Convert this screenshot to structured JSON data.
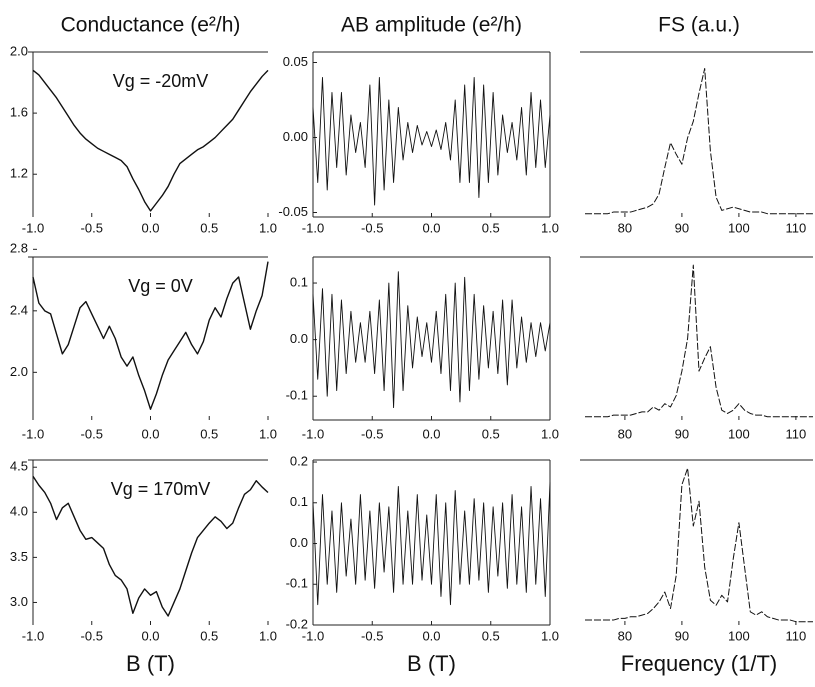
{
  "chart_data": [
    {
      "type": "line",
      "title": "Conductance (e²/h)",
      "annotation": "Vg = -20mV",
      "x": [
        -1,
        -0.95,
        -0.9,
        -0.85,
        -0.8,
        -0.75,
        -0.7,
        -0.65,
        -0.6,
        -0.55,
        -0.5,
        -0.45,
        -0.4,
        -0.35,
        -0.3,
        -0.25,
        -0.2,
        -0.15,
        -0.1,
        -0.05,
        0,
        0.05,
        0.1,
        0.15,
        0.2,
        0.25,
        0.3,
        0.35,
        0.4,
        0.45,
        0.5,
        0.55,
        0.6,
        0.65,
        0.7,
        0.75,
        0.8,
        0.85,
        0.9,
        0.95,
        1
      ],
      "values": [
        1.88,
        1.85,
        1.8,
        1.75,
        1.7,
        1.64,
        1.58,
        1.52,
        1.47,
        1.43,
        1.4,
        1.37,
        1.35,
        1.33,
        1.31,
        1.29,
        1.25,
        1.17,
        1.1,
        1.02,
        0.96,
        1.01,
        1.06,
        1.12,
        1.2,
        1.27,
        1.3,
        1.33,
        1.36,
        1.38,
        1.41,
        1.44,
        1.48,
        1.52,
        1.56,
        1.62,
        1.68,
        1.74,
        1.79,
        1.84,
        1.88
      ],
      "xlim": [
        -1,
        1
      ],
      "ylim": [
        0.92,
        2.0
      ],
      "xticks": [
        {
          "value": -1,
          "label": "-1.0"
        },
        -0.5,
        {
          "value": 0,
          "label": "0.0"
        },
        0.5,
        {
          "value": 1,
          "label": "1.0"
        }
      ],
      "yticks": [
        1.2,
        1.6,
        {
          "value": 2,
          "label": "2.0"
        }
      ]
    },
    {
      "type": "line",
      "title": "AB amplitude (e²/h)",
      "x": [
        -1,
        -0.96,
        -0.92,
        -0.88,
        -0.84,
        -0.8,
        -0.76,
        -0.72,
        -0.68,
        -0.64,
        -0.6,
        -0.56,
        -0.52,
        -0.48,
        -0.44,
        -0.4,
        -0.36,
        -0.32,
        -0.28,
        -0.24,
        -0.2,
        -0.16,
        -0.12,
        -0.08,
        -0.04,
        0,
        0.04,
        0.08,
        0.12,
        0.16,
        0.2,
        0.24,
        0.28,
        0.32,
        0.36,
        0.4,
        0.44,
        0.48,
        0.52,
        0.56,
        0.6,
        0.64,
        0.68,
        0.72,
        0.76,
        0.8,
        0.84,
        0.88,
        0.92,
        0.96,
        1
      ],
      "values": [
        0.02,
        -0.03,
        0.04,
        -0.035,
        0.03,
        -0.02,
        0.03,
        -0.025,
        0.015,
        -0.01,
        0.01,
        -0.02,
        0.035,
        -0.045,
        0.04,
        -0.035,
        0.025,
        -0.03,
        0.02,
        -0.015,
        0.01,
        -0.01,
        0.008,
        -0.005,
        0.004,
        -0.006,
        0.005,
        -0.008,
        0.01,
        -0.015,
        0.025,
        -0.03,
        0.035,
        -0.03,
        0.04,
        -0.04,
        0.035,
        -0.03,
        0.03,
        -0.025,
        0.015,
        -0.01,
        0.01,
        -0.015,
        0.02,
        -0.025,
        0.03,
        -0.02,
        0.025,
        -0.02,
        0.015
      ],
      "xlim": [
        -1,
        1
      ],
      "ylim": [
        -0.053,
        0.057
      ],
      "xticks": [
        {
          "value": -1,
          "label": "-1.0"
        },
        -0.5,
        {
          "value": 0,
          "label": "0.0"
        },
        0.5,
        {
          "value": 1,
          "label": "1.0"
        }
      ],
      "yticks": [
        -0.05,
        {
          "value": 0,
          "label": "0.00"
        },
        0.05
      ]
    },
    {
      "type": "line",
      "title": "FS (a.u.)",
      "x": [
        73,
        74,
        75,
        76,
        77,
        78,
        79,
        80,
        81,
        82,
        83,
        84,
        85,
        86,
        87,
        88,
        89,
        90,
        91,
        92,
        93,
        94,
        95,
        96,
        97,
        98,
        99,
        100,
        101,
        102,
        103,
        104,
        105,
        106,
        107,
        108,
        109,
        110,
        111,
        112,
        113
      ],
      "values": [
        0.02,
        0.02,
        0.02,
        0.02,
        0.02,
        0.03,
        0.03,
        0.03,
        0.03,
        0.04,
        0.05,
        0.06,
        0.08,
        0.14,
        0.3,
        0.45,
        0.38,
        0.32,
        0.48,
        0.58,
        0.75,
        0.9,
        0.4,
        0.12,
        0.04,
        0.05,
        0.06,
        0.05,
        0.04,
        0.03,
        0.03,
        0.03,
        0.02,
        0.02,
        0.02,
        0.02,
        0.02,
        0.02,
        0.02,
        0.02,
        0.02
      ],
      "xlim": [
        73,
        113
      ],
      "ylim": [
        0,
        1
      ],
      "xticks": [
        80,
        90,
        100,
        110
      ]
    },
    {
      "type": "line",
      "annotation": "Vg = 0V",
      "x": [
        -1,
        -0.95,
        -0.9,
        -0.85,
        -0.8,
        -0.75,
        -0.7,
        -0.65,
        -0.6,
        -0.55,
        -0.5,
        -0.45,
        -0.4,
        -0.35,
        -0.3,
        -0.25,
        -0.2,
        -0.15,
        -0.1,
        -0.05,
        0,
        0.05,
        0.1,
        0.15,
        0.2,
        0.25,
        0.3,
        0.35,
        0.4,
        0.45,
        0.5,
        0.55,
        0.6,
        0.65,
        0.7,
        0.75,
        0.8,
        0.85,
        0.9,
        0.95,
        1
      ],
      "values": [
        2.62,
        2.45,
        2.4,
        2.38,
        2.25,
        2.12,
        2.18,
        2.3,
        2.42,
        2.46,
        2.38,
        2.3,
        2.22,
        2.3,
        2.22,
        2.1,
        2.04,
        2.1,
        1.98,
        1.88,
        1.76,
        1.86,
        1.98,
        2.08,
        2.14,
        2.2,
        2.26,
        2.18,
        2.12,
        2.2,
        2.34,
        2.42,
        2.36,
        2.48,
        2.58,
        2.62,
        2.45,
        2.28,
        2.4,
        2.5,
        2.72
      ],
      "xlim": [
        -1,
        1
      ],
      "ylim": [
        1.69,
        2.75
      ],
      "xticks": [
        {
          "value": -1,
          "label": "-1.0"
        },
        -0.5,
        {
          "value": 0,
          "label": "0.0"
        },
        0.5,
        {
          "value": 1,
          "label": "1.0"
        }
      ],
      "yticks": [
        {
          "value": 2,
          "label": "2.0"
        },
        2.4,
        2.8
      ]
    },
    {
      "type": "line",
      "x": [
        -1,
        -0.96,
        -0.92,
        -0.88,
        -0.84,
        -0.8,
        -0.76,
        -0.72,
        -0.68,
        -0.64,
        -0.6,
        -0.56,
        -0.52,
        -0.48,
        -0.44,
        -0.4,
        -0.36,
        -0.32,
        -0.28,
        -0.24,
        -0.2,
        -0.16,
        -0.12,
        -0.08,
        -0.04,
        0,
        0.04,
        0.08,
        0.12,
        0.16,
        0.2,
        0.24,
        0.28,
        0.32,
        0.36,
        0.4,
        0.44,
        0.48,
        0.52,
        0.56,
        0.6,
        0.64,
        0.68,
        0.72,
        0.76,
        0.8,
        0.84,
        0.88,
        0.92,
        0.96,
        1
      ],
      "values": [
        0.08,
        -0.07,
        0.09,
        -0.1,
        0.08,
        -0.09,
        0.07,
        -0.06,
        0.05,
        -0.04,
        0.03,
        -0.04,
        0.05,
        -0.06,
        0.07,
        -0.09,
        0.1,
        -0.12,
        0.12,
        -0.09,
        0.06,
        -0.05,
        0.04,
        -0.03,
        0.03,
        -0.04,
        0.05,
        -0.06,
        0.08,
        -0.09,
        0.1,
        -0.11,
        0.11,
        -0.09,
        0.08,
        -0.07,
        0.06,
        -0.05,
        0.05,
        -0.06,
        0.07,
        -0.08,
        0.07,
        -0.05,
        0.04,
        -0.04,
        0.03,
        -0.03,
        0.03,
        -0.02,
        0.03
      ],
      "xlim": [
        -1,
        1
      ],
      "ylim": [
        -0.142,
        0.146
      ],
      "xticks": [
        {
          "value": -1,
          "label": "-1.0"
        },
        -0.5,
        {
          "value": 0,
          "label": "0.0"
        },
        0.5,
        {
          "value": 1,
          "label": "1.0"
        }
      ],
      "yticks": [
        -0.1,
        {
          "value": 0,
          "label": "0.0"
        },
        0.1
      ]
    },
    {
      "type": "line",
      "x": [
        73,
        74,
        75,
        76,
        77,
        78,
        79,
        80,
        81,
        82,
        83,
        84,
        85,
        86,
        87,
        88,
        89,
        90,
        91,
        92,
        93,
        94,
        95,
        96,
        97,
        98,
        99,
        100,
        101,
        102,
        103,
        104,
        105,
        106,
        107,
        108,
        109,
        110,
        111,
        112,
        113
      ],
      "values": [
        0.02,
        0.02,
        0.02,
        0.02,
        0.02,
        0.03,
        0.03,
        0.03,
        0.03,
        0.04,
        0.05,
        0.05,
        0.08,
        0.06,
        0.1,
        0.08,
        0.15,
        0.3,
        0.5,
        0.95,
        0.3,
        0.38,
        0.45,
        0.2,
        0.06,
        0.04,
        0.06,
        0.1,
        0.06,
        0.04,
        0.03,
        0.03,
        0.02,
        0.02,
        0.02,
        0.02,
        0.02,
        0.02,
        0.02,
        0.02,
        0.02
      ],
      "xlim": [
        73,
        113
      ],
      "ylim": [
        0,
        1
      ],
      "xticks": [
        80,
        90,
        100,
        110
      ]
    },
    {
      "type": "line",
      "annotation": "Vg = 170mV",
      "x_label": "B (T)",
      "x": [
        -1,
        -0.95,
        -0.9,
        -0.85,
        -0.8,
        -0.75,
        -0.7,
        -0.65,
        -0.6,
        -0.55,
        -0.5,
        -0.45,
        -0.4,
        -0.35,
        -0.3,
        -0.25,
        -0.2,
        -0.15,
        -0.1,
        -0.05,
        0,
        0.05,
        0.1,
        0.15,
        0.2,
        0.25,
        0.3,
        0.35,
        0.4,
        0.45,
        0.5,
        0.55,
        0.6,
        0.65,
        0.7,
        0.75,
        0.8,
        0.85,
        0.9,
        0.95,
        1
      ],
      "values": [
        4.4,
        4.3,
        4.22,
        4.1,
        3.92,
        4.05,
        4.1,
        3.95,
        3.8,
        3.7,
        3.72,
        3.66,
        3.6,
        3.42,
        3.3,
        3.25,
        3.15,
        2.88,
        3.05,
        3.15,
        3.08,
        3.12,
        2.95,
        2.85,
        3.0,
        3.15,
        3.35,
        3.55,
        3.72,
        3.8,
        3.88,
        3.95,
        3.9,
        3.82,
        3.88,
        4.05,
        4.2,
        4.25,
        4.35,
        4.28,
        4.22
      ],
      "xlim": [
        -1,
        1
      ],
      "ylim": [
        2.75,
        4.58
      ],
      "xticks": [
        {
          "value": -1,
          "label": "-1.0"
        },
        -0.5,
        {
          "value": 0,
          "label": "0.0"
        },
        0.5,
        {
          "value": 1,
          "label": "1.0"
        }
      ],
      "yticks": [
        {
          "value": 3,
          "label": "3.0"
        },
        3.5,
        {
          "value": 4,
          "label": "4.0"
        },
        4.5
      ]
    },
    {
      "type": "line",
      "x_label": "B (T)",
      "x": [
        -1,
        -0.96,
        -0.92,
        -0.88,
        -0.84,
        -0.8,
        -0.76,
        -0.72,
        -0.68,
        -0.64,
        -0.6,
        -0.56,
        -0.52,
        -0.48,
        -0.44,
        -0.4,
        -0.36,
        -0.32,
        -0.28,
        -0.24,
        -0.2,
        -0.16,
        -0.12,
        -0.08,
        -0.04,
        0,
        0.04,
        0.08,
        0.12,
        0.16,
        0.2,
        0.24,
        0.28,
        0.32,
        0.36,
        0.4,
        0.44,
        0.48,
        0.52,
        0.56,
        0.6,
        0.64,
        0.68,
        0.72,
        0.76,
        0.8,
        0.84,
        0.88,
        0.92,
        0.96,
        1
      ],
      "values": [
        0.1,
        -0.15,
        0.12,
        -0.1,
        0.08,
        -0.12,
        0.1,
        -0.08,
        0.06,
        -0.1,
        0.12,
        -0.09,
        0.08,
        -0.11,
        0.1,
        -0.07,
        0.09,
        -0.12,
        0.14,
        -0.1,
        0.08,
        -0.1,
        0.12,
        -0.09,
        0.07,
        -0.1,
        0.12,
        -0.13,
        0.1,
        -0.15,
        0.13,
        -0.1,
        0.08,
        -0.1,
        0.11,
        -0.09,
        0.1,
        -0.12,
        0.09,
        -0.08,
        0.1,
        -0.11,
        0.12,
        -0.1,
        0.09,
        -0.12,
        0.14,
        -0.1,
        0.11,
        -0.13,
        0.15
      ],
      "xlim": [
        -1,
        1
      ],
      "ylim": [
        -0.2,
        0.205
      ],
      "xticks": [
        {
          "value": -1,
          "label": "-1.0"
        },
        -0.5,
        {
          "value": 0,
          "label": "0.0"
        },
        0.5,
        {
          "value": 1,
          "label": "1.0"
        }
      ],
      "yticks": [
        -0.2,
        -0.1,
        {
          "value": 0,
          "label": "0.0"
        },
        0.1,
        0.2
      ]
    },
    {
      "type": "line",
      "x_label": "Frequency (1/T)",
      "x": [
        73,
        74,
        75,
        76,
        77,
        78,
        79,
        80,
        81,
        82,
        83,
        84,
        85,
        86,
        87,
        88,
        89,
        90,
        91,
        92,
        93,
        94,
        95,
        96,
        97,
        98,
        99,
        100,
        101,
        102,
        103,
        104,
        105,
        106,
        107,
        108,
        109,
        110,
        111,
        112,
        113
      ],
      "values": [
        0.03,
        0.03,
        0.03,
        0.03,
        0.03,
        0.03,
        0.04,
        0.04,
        0.05,
        0.05,
        0.06,
        0.07,
        0.1,
        0.14,
        0.2,
        0.1,
        0.3,
        0.85,
        0.95,
        0.6,
        0.75,
        0.35,
        0.15,
        0.12,
        0.18,
        0.14,
        0.4,
        0.62,
        0.35,
        0.08,
        0.06,
        0.08,
        0.05,
        0.04,
        0.03,
        0.03,
        0.03,
        0.02,
        0.02,
        0.02,
        0.02
      ],
      "xlim": [
        73,
        113
      ],
      "ylim": [
        0,
        1
      ],
      "xticks": [
        80,
        90,
        100,
        110
      ]
    }
  ]
}
